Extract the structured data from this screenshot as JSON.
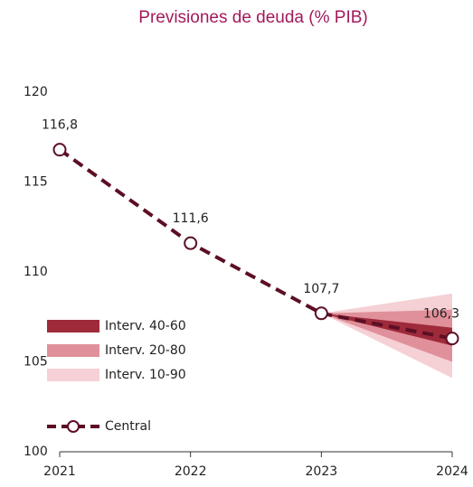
{
  "chart_data": {
    "type": "fan",
    "title": "Previsiones de deuda (% PIB)",
    "categories": [
      "2021",
      "2022",
      "2023",
      "2024"
    ],
    "ylim": [
      100,
      120
    ],
    "yticks": [
      100,
      105,
      110,
      115,
      120
    ],
    "series": [
      {
        "name": "Central",
        "color": "#5c0f24",
        "values": [
          116.8,
          111.6,
          107.7,
          106.3
        ],
        "value_labels": [
          "116,8",
          "111,6",
          "107,7",
          "106,3"
        ]
      }
    ],
    "bands": [
      {
        "name": "Interv. 40-60",
        "color": "#9e2a3a",
        "lower": [
          null,
          null,
          107.7,
          105.9
        ],
        "upper": [
          null,
          null,
          107.7,
          106.9
        ]
      },
      {
        "name": "Interv. 20-80",
        "color": "#e0909a",
        "lower": [
          null,
          null,
          107.7,
          105.0
        ],
        "upper": [
          null,
          null,
          107.7,
          107.9
        ]
      },
      {
        "name": "Interv. 10-90",
        "color": "#f5d0d5",
        "lower": [
          null,
          null,
          107.7,
          104.1
        ],
        "upper": [
          null,
          null,
          107.7,
          108.8
        ]
      }
    ]
  }
}
